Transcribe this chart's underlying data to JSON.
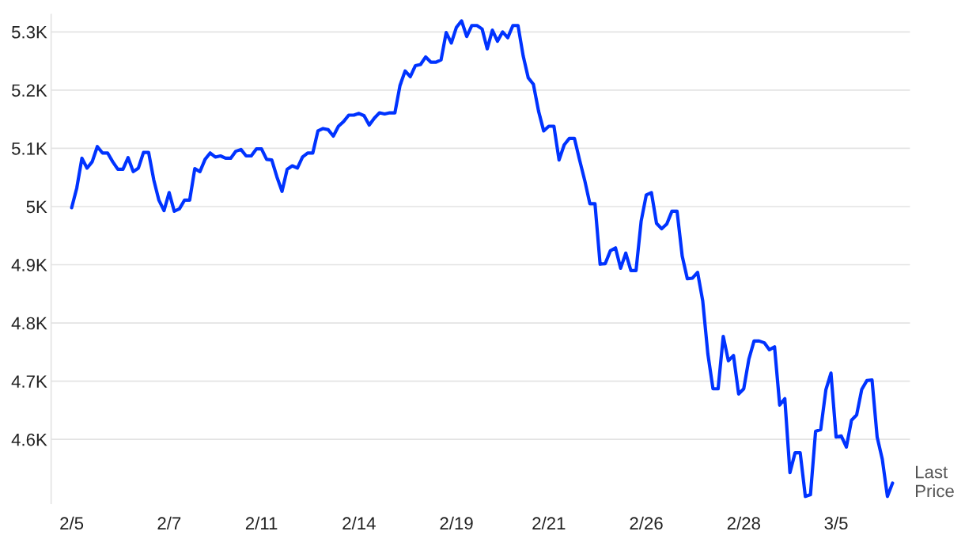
{
  "chart_data": {
    "type": "line",
    "categories": [
      "2/5",
      null,
      null,
      null,
      null,
      null,
      null,
      null,
      null,
      null,
      null,
      null,
      null,
      null,
      null,
      null,
      null,
      null,
      null,
      "2/7",
      null,
      null,
      null,
      null,
      null,
      null,
      null,
      null,
      null,
      null,
      null,
      null,
      null,
      null,
      null,
      null,
      null,
      "2/11",
      null,
      null,
      null,
      null,
      null,
      null,
      null,
      null,
      null,
      null,
      null,
      null,
      null,
      null,
      null,
      null,
      null,
      null,
      "2/14",
      null,
      null,
      null,
      null,
      null,
      null,
      null,
      null,
      null,
      null,
      null,
      null,
      null,
      null,
      null,
      null,
      null,
      null,
      "2/19",
      null,
      null,
      null,
      null,
      null,
      null,
      null,
      null,
      null,
      null,
      null,
      null,
      null,
      null,
      null,
      null,
      null,
      "2/21",
      null,
      null,
      null,
      null,
      null,
      null,
      null,
      null,
      null,
      null,
      null,
      null,
      null,
      null,
      null,
      null,
      null,
      null,
      "2/26",
      null,
      null,
      null,
      null,
      null,
      null,
      null,
      null,
      null,
      null,
      null,
      null,
      null,
      null,
      null,
      null,
      null,
      null,
      "2/28",
      null,
      null,
      null,
      null,
      null,
      null,
      null,
      null,
      null,
      null,
      null,
      null,
      null,
      null,
      null,
      null,
      null,
      "3/5",
      null,
      null,
      null,
      null,
      null,
      null,
      null,
      null,
      null,
      null,
      null
    ],
    "series": [
      {
        "color": "#0033ff",
        "values": [
          4998,
          5032,
          5083,
          5066,
          5077,
          5103,
          5092,
          5092,
          5077,
          5064,
          5064,
          5084,
          5060,
          5066,
          5093,
          5093,
          5046,
          5011,
          4993,
          5024,
          4992,
          4996,
          5011,
          5011,
          5065,
          5060,
          5081,
          5092,
          5085,
          5087,
          5083,
          5083,
          5095,
          5098,
          5087,
          5087,
          5099,
          5099,
          5081,
          5080,
          5051,
          5026,
          5064,
          5070,
          5066,
          5085,
          5092,
          5092,
          5130,
          5134,
          5132,
          5121,
          5138,
          5146,
          5157,
          5157,
          5160,
          5156,
          5140,
          5152,
          5161,
          5159,
          5161,
          5161,
          5208,
          5233,
          5223,
          5242,
          5244,
          5257,
          5248,
          5248,
          5252,
          5299,
          5281,
          5308,
          5319,
          5292,
          5311,
          5311,
          5305,
          5271,
          5303,
          5284,
          5300,
          5290,
          5311,
          5311,
          5259,
          5221,
          5210,
          5164,
          5130,
          5138,
          5138,
          5080,
          5106,
          5117,
          5117,
          5080,
          5045,
          5005,
          5005,
          4901,
          4902,
          4924,
          4929,
          4894,
          4920,
          4890,
          4890,
          4975,
          5020,
          5024,
          4971,
          4962,
          4970,
          4992,
          4992,
          4915,
          4876,
          4877,
          4887,
          4838,
          4747,
          4687,
          4687,
          4777,
          4735,
          4744,
          4678,
          4687,
          4738,
          4769,
          4769,
          4766,
          4754,
          4759,
          4659,
          4670,
          4543,
          4577,
          4577,
          4502,
          4505,
          4614,
          4617,
          4685,
          4714,
          4604,
          4606,
          4587,
          4633,
          4642,
          4686,
          4701,
          4702,
          4604,
          4566,
          4502,
          4525
        ]
      }
    ],
    "ylim": [
      4490,
      5330
    ],
    "yticks": [
      {
        "value": 4600,
        "label": "4.6K"
      },
      {
        "value": 4700,
        "label": "4.7K"
      },
      {
        "value": 4800,
        "label": "4.8K"
      },
      {
        "value": 4900,
        "label": "4.9K"
      },
      {
        "value": 5000,
        "label": "5K"
      },
      {
        "value": 5100,
        "label": "5.1K"
      },
      {
        "value": 5200,
        "label": "5.2K"
      },
      {
        "value": 5300,
        "label": "5.3K"
      }
    ],
    "grid": "y",
    "annotations": [
      "Last Price"
    ]
  }
}
